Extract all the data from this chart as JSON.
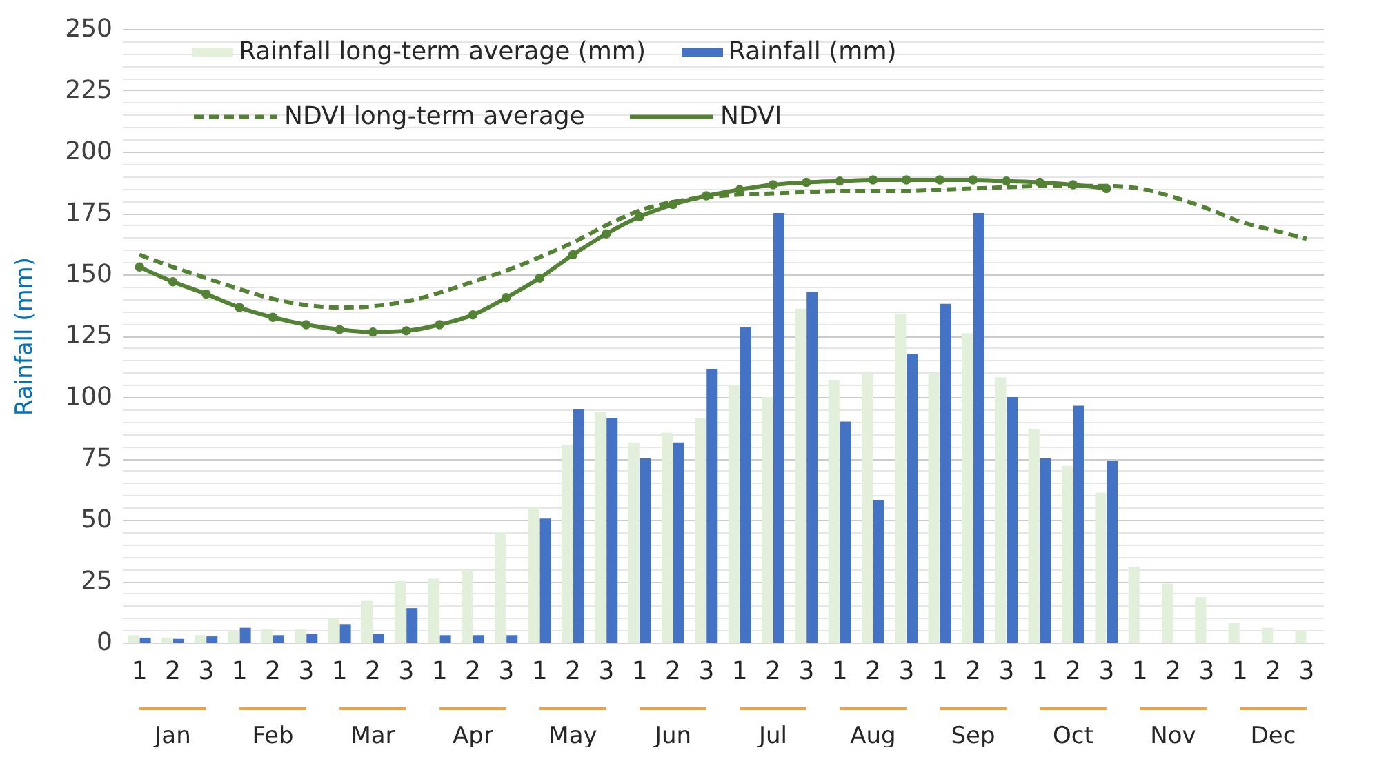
{
  "chart_data": {
    "type": "bar",
    "ylabel": "Rainfall (mm)",
    "categories": [
      "1",
      "2",
      "3",
      "1",
      "2",
      "3",
      "1",
      "2",
      "3",
      "1",
      "2",
      "3",
      "1",
      "2",
      "3",
      "1",
      "2",
      "3",
      "1",
      "2",
      "3",
      "1",
      "2",
      "3",
      "1",
      "2",
      "3",
      "1",
      "2",
      "3",
      "1",
      "2",
      "3",
      "1",
      "2",
      "3"
    ],
    "series": [
      {
        "name": "Rainfall long-term average (mm)",
        "type": "bar",
        "color": "#e2efda",
        "values": [
          3,
          2,
          3,
          4.5,
          5.5,
          5.5,
          10,
          17,
          25,
          26,
          29.5,
          45,
          55,
          80.5,
          94,
          81.5,
          85.5,
          91.5,
          105,
          100,
          136,
          107,
          110,
          134,
          110,
          126,
          108,
          87,
          72,
          61,
          31,
          24,
          18.5,
          8,
          6,
          4.5
        ]
      },
      {
        "name": "Rainfall (mm)",
        "type": "bar",
        "color": "#4472c4",
        "values": [
          2,
          1.5,
          2.5,
          6,
          3,
          3.5,
          7.5,
          3.5,
          14,
          3,
          3,
          3,
          50.5,
          95,
          91.5,
          75,
          81.5,
          111.5,
          128.5,
          175,
          143,
          90,
          58,
          117.5,
          138,
          175,
          100,
          75,
          96.5,
          74,
          null,
          null,
          null,
          null,
          null,
          null
        ]
      },
      {
        "name": "NDVI long-term average",
        "type": "line",
        "color": "#548235",
        "line_style": "dashed",
        "marker": "none",
        "values": [
          158,
          153,
          148.5,
          144,
          140,
          137.5,
          136.5,
          137,
          139,
          142.5,
          147,
          151.5,
          157,
          163,
          170,
          176,
          179.5,
          181.5,
          182.5,
          183,
          183.5,
          184,
          184,
          184,
          184.5,
          185,
          185.5,
          186,
          186,
          186,
          185,
          181.5,
          177,
          171.5,
          168,
          164.5
        ]
      },
      {
        "name": "NDVI",
        "type": "line",
        "color": "#548235",
        "line_style": "solid",
        "marker": "circle",
        "values": [
          153,
          147,
          142,
          136.5,
          132.5,
          129.5,
          127.5,
          126.5,
          127,
          129.5,
          133.5,
          140.5,
          148.5,
          158,
          166.5,
          173.5,
          178.5,
          182,
          184.5,
          186.5,
          187.5,
          188,
          188.5,
          188.5,
          188.5,
          188.5,
          188,
          187.5,
          186.5,
          185,
          null,
          null,
          null,
          null,
          null,
          null
        ]
      }
    ],
    "ylim": [
      0,
      250
    ],
    "yticks": [
      0,
      {
        "value": 5,
        "label": null
      },
      {
        "value": 10,
        "label": null
      },
      {
        "value": 15,
        "label": null
      },
      {
        "value": 20,
        "label": null
      },
      25,
      {
        "value": 30,
        "label": null
      },
      {
        "value": 35,
        "label": null
      },
      {
        "value": 40,
        "label": null
      },
      {
        "value": 45,
        "label": null
      },
      50,
      {
        "value": 55,
        "label": null
      },
      {
        "value": 60,
        "label": null
      },
      {
        "value": 65,
        "label": null
      },
      {
        "value": 70,
        "label": null
      },
      75,
      {
        "value": 80,
        "label": null
      },
      {
        "value": 85,
        "label": null
      },
      {
        "value": 90,
        "label": null
      },
      {
        "value": 95,
        "label": null
      },
      100,
      {
        "value": 105,
        "label": null
      },
      {
        "value": 110,
        "label": null
      },
      {
        "value": 115,
        "label": null
      },
      {
        "value": 120,
        "label": null
      },
      125,
      {
        "value": 130,
        "label": null
      },
      {
        "value": 135,
        "label": null
      },
      {
        "value": 140,
        "label": null
      },
      {
        "value": 145,
        "label": null
      },
      150,
      {
        "value": 155,
        "label": null
      },
      {
        "value": 160,
        "label": null
      },
      {
        "value": 165,
        "label": null
      },
      {
        "value": 170,
        "label": null
      },
      175,
      {
        "value": 180,
        "label": null
      },
      {
        "value": 185,
        "label": null
      },
      {
        "value": 190,
        "label": null
      },
      {
        "value": 195,
        "label": null
      },
      200,
      {
        "value": 205,
        "label": null
      },
      {
        "value": 210,
        "label": null
      },
      {
        "value": 215,
        "label": null
      },
      {
        "value": 220,
        "label": null
      },
      225,
      {
        "value": 230,
        "label": null
      },
      {
        "value": 235,
        "label": null
      },
      {
        "value": 240,
        "label": null
      },
      {
        "value": 245,
        "label": null
      },
      250
    ],
    "annotations": [
      "Jan",
      "Feb",
      "Mar",
      "Apr",
      "May",
      "Jun",
      "Jul",
      "Aug",
      "Sep",
      "Oct",
      "Nov",
      "Dec"
    ],
    "grid": true,
    "legend": "top"
  }
}
